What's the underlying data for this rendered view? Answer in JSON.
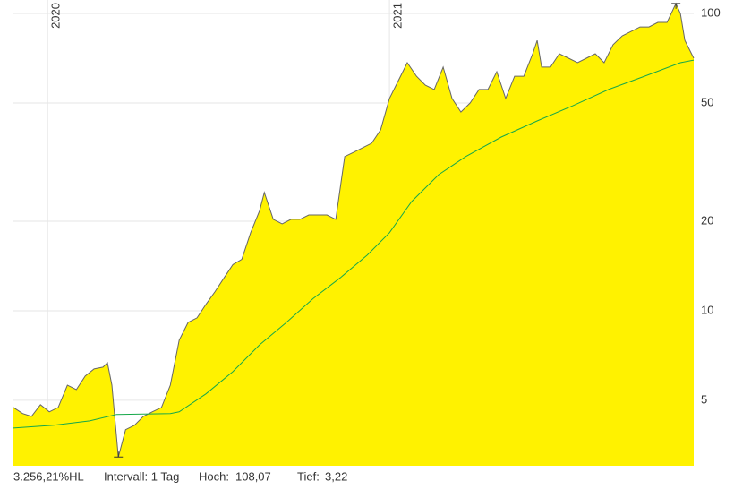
{
  "chart_data": {
    "type": "area",
    "log_scale": true,
    "grid": true,
    "ylim": [
      3.01,
      111
    ],
    "yticks": [
      5,
      10,
      20,
      50,
      100
    ],
    "xlim": [
      2019.9,
      2021.89
    ],
    "xticks": [
      2020,
      2021
    ],
    "series": [
      {
        "name": null,
        "color": "#fff200",
        "line_color": "#666666",
        "x": [
          2019.9,
          2019.927,
          2019.953,
          2019.979,
          2020.005,
          2020.031,
          2020.058,
          2020.084,
          2020.11,
          2020.136,
          2020.162,
          2020.175,
          2020.188,
          2020.207,
          2020.228,
          2020.254,
          2020.28,
          2020.306,
          2020.333,
          2020.359,
          2020.385,
          2020.411,
          2020.437,
          2020.463,
          2020.49,
          2020.516,
          2020.542,
          2020.568,
          2020.594,
          2020.62,
          2020.634,
          2020.66,
          2020.686,
          2020.712,
          2020.738,
          2020.764,
          2020.791,
          2020.817,
          2020.843,
          2020.869,
          2020.895,
          2020.921,
          2020.948,
          2020.974,
          2021.0,
          2021.026,
          2021.052,
          2021.079,
          2021.105,
          2021.131,
          2021.157,
          2021.183,
          2021.209,
          2021.236,
          2021.262,
          2021.288,
          2021.314,
          2021.34,
          2021.366,
          2021.393,
          2021.419,
          2021.432,
          2021.445,
          2021.471,
          2021.497,
          2021.524,
          2021.55,
          2021.576,
          2021.602,
          2021.628,
          2021.654,
          2021.681,
          2021.707,
          2021.733,
          2021.759,
          2021.785,
          2021.812,
          2021.838,
          2021.851,
          2021.864,
          2021.89
        ],
        "values": [
          4.73,
          4.51,
          4.41,
          4.83,
          4.57,
          4.73,
          5.62,
          5.43,
          6.03,
          6.37,
          6.46,
          6.69,
          5.62,
          3.22,
          3.98,
          4.12,
          4.41,
          4.57,
          4.73,
          5.62,
          7.96,
          9.14,
          9.46,
          10.5,
          11.6,
          12.9,
          14.3,
          14.9,
          18.3,
          21.7,
          25.0,
          20.3,
          19.6,
          20.3,
          20.3,
          21.0,
          21.0,
          21.0,
          20.3,
          33.0,
          34.1,
          35.3,
          36.6,
          40.6,
          51.8,
          59.4,
          68.3,
          61.5,
          57.4,
          55.5,
          66.0,
          51.8,
          46.6,
          50.0,
          55.5,
          55.5,
          63.7,
          51.8,
          61.5,
          61.5,
          73.2,
          81.2,
          66.0,
          66.0,
          73.2,
          70.7,
          68.3,
          70.7,
          73.2,
          68.3,
          78.5,
          84.1,
          87.0,
          90.1,
          90.1,
          93.3,
          93.3,
          108.07,
          100,
          81.2,
          70.7
        ]
      },
      {
        "name": null,
        "color": "#17a84a",
        "x": [
          2019.9,
          2020.018,
          2020.123,
          2020.202,
          2020.359,
          2020.385,
          2020.463,
          2020.542,
          2020.62,
          2020.699,
          2020.777,
          2020.856,
          2020.935,
          2021.0,
          2021.065,
          2021.144,
          2021.223,
          2021.327,
          2021.432,
          2021.537,
          2021.641,
          2021.746,
          2021.851,
          2021.89
        ],
        "values": [
          4.03,
          4.12,
          4.26,
          4.48,
          4.51,
          4.57,
          5.25,
          6.24,
          7.68,
          9.14,
          11.0,
          12.9,
          15.4,
          18.3,
          23.3,
          28.7,
          33.0,
          38.4,
          43.5,
          49.0,
          55.5,
          61.5,
          68.3,
          69.7
        ]
      }
    ],
    "footer": {
      "performance": "3.256,21%HL",
      "interval": "Intervall: 1 Tag",
      "high_label": "Hoch:",
      "high": 108.07,
      "high_text": "108,07",
      "low_label": "Tief:",
      "low": 3.22,
      "low_text": "3,22"
    }
  }
}
